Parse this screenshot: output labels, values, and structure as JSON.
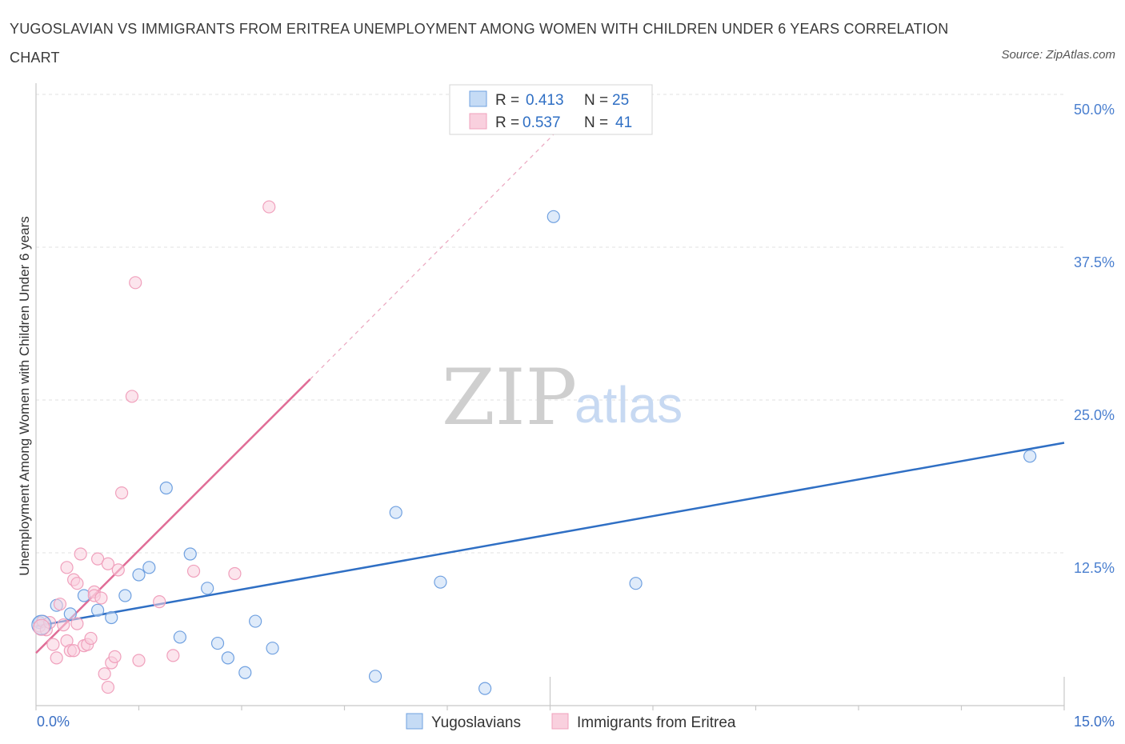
{
  "title": "YUGOSLAVIAN VS IMMIGRANTS FROM ERITREA UNEMPLOYMENT AMONG WOMEN WITH CHILDREN UNDER 6 YEARS CORRELATION CHART",
  "source": "Source: ZipAtlas.com",
  "watermark": {
    "zip": "ZIP",
    "atlas": "atlas"
  },
  "chart_data": {
    "type": "scatter",
    "title": "YUGOSLAVIAN VS IMMIGRANTS FROM ERITREA UNEMPLOYMENT AMONG WOMEN WITH CHILDREN UNDER 6 YEARS CORRELATION CHART",
    "xlabel": "",
    "ylabel": "Unemployment Among Women with Children Under 6 years",
    "xlim": [
      0,
      15
    ],
    "ylim": [
      0,
      50
    ],
    "x_ticks": [
      "0.0%",
      "15.0%"
    ],
    "y_ticks": [
      {
        "value": 12.5,
        "label": "12.5%"
      },
      {
        "value": 25.0,
        "label": "25.0%"
      },
      {
        "value": 37.5,
        "label": "37.5%"
      },
      {
        "value": 50.0,
        "label": "50.0%"
      }
    ],
    "grid": true,
    "legend_position": "bottom",
    "stats": [
      {
        "r_label": "R =",
        "r_value": "0.413",
        "n_label": "N =",
        "n_value": "25"
      },
      {
        "r_label": "R =",
        "r_value": "0.537",
        "n_label": "N =",
        "n_value": "41"
      }
    ],
    "series": [
      {
        "name": "Yugoslavians",
        "color": "#6fa0e0",
        "fill": "#c5dbf5",
        "line_color": "#2f6fc4",
        "trend": {
          "x0": 0,
          "y0": 6.5,
          "x1": 15,
          "y1": 21.5,
          "dashed_to": null
        },
        "points": [
          [
            0.05,
            6.8
          ],
          [
            0.3,
            8.2
          ],
          [
            0.5,
            7.5
          ],
          [
            0.7,
            9.0
          ],
          [
            0.9,
            7.8
          ],
          [
            1.1,
            7.2
          ],
          [
            1.3,
            9.0
          ],
          [
            1.5,
            10.7
          ],
          [
            1.65,
            11.3
          ],
          [
            1.9,
            17.8
          ],
          [
            2.1,
            5.6
          ],
          [
            2.25,
            12.4
          ],
          [
            2.5,
            9.6
          ],
          [
            2.65,
            5.1
          ],
          [
            2.8,
            3.9
          ],
          [
            3.05,
            2.7
          ],
          [
            3.2,
            6.9
          ],
          [
            3.45,
            4.7
          ],
          [
            4.95,
            2.4
          ],
          [
            5.25,
            15.8
          ],
          [
            5.9,
            10.1
          ],
          [
            6.55,
            1.4
          ],
          [
            7.55,
            40.0
          ],
          [
            8.75,
            10.0
          ],
          [
            14.5,
            20.4
          ]
        ]
      },
      {
        "name": "Immigrants from Eritrea",
        "color": "#f0a0bc",
        "fill": "#f9d0de",
        "line_color": "#e06c96",
        "trend": {
          "x0": 0,
          "y0": 4.3,
          "x1": 4.0,
          "y1": 26.7,
          "dashed_to": {
            "x": 7.6,
            "y": 47.0
          }
        },
        "points": [
          [
            0.05,
            6.5
          ],
          [
            0.1,
            6.9
          ],
          [
            0.15,
            6.2
          ],
          [
            0.2,
            6.8
          ],
          [
            0.25,
            5.0
          ],
          [
            0.3,
            3.9
          ],
          [
            0.35,
            8.3
          ],
          [
            0.4,
            6.6
          ],
          [
            0.45,
            5.3
          ],
          [
            0.45,
            11.3
          ],
          [
            0.5,
            4.5
          ],
          [
            0.55,
            4.5
          ],
          [
            0.55,
            10.3
          ],
          [
            0.6,
            6.7
          ],
          [
            0.6,
            10.0
          ],
          [
            0.65,
            12.4
          ],
          [
            0.7,
            4.9
          ],
          [
            0.75,
            5.0
          ],
          [
            0.8,
            5.5
          ],
          [
            0.85,
            9.3
          ],
          [
            0.85,
            9.0
          ],
          [
            0.9,
            12.0
          ],
          [
            0.95,
            8.8
          ],
          [
            1.0,
            2.6
          ],
          [
            1.05,
            11.6
          ],
          [
            1.05,
            1.5
          ],
          [
            1.1,
            3.5
          ],
          [
            1.15,
            4.0
          ],
          [
            1.2,
            11.1
          ],
          [
            1.25,
            17.4
          ],
          [
            1.4,
            25.3
          ],
          [
            1.45,
            34.6
          ],
          [
            1.5,
            3.7
          ],
          [
            1.8,
            8.5
          ],
          [
            2.0,
            4.1
          ],
          [
            2.3,
            11.0
          ],
          [
            2.9,
            10.8
          ],
          [
            3.4,
            40.8
          ]
        ]
      }
    ],
    "legend": [
      {
        "label": "Yugoslavians"
      },
      {
        "label": "Immigrants from Eritrea"
      }
    ]
  }
}
